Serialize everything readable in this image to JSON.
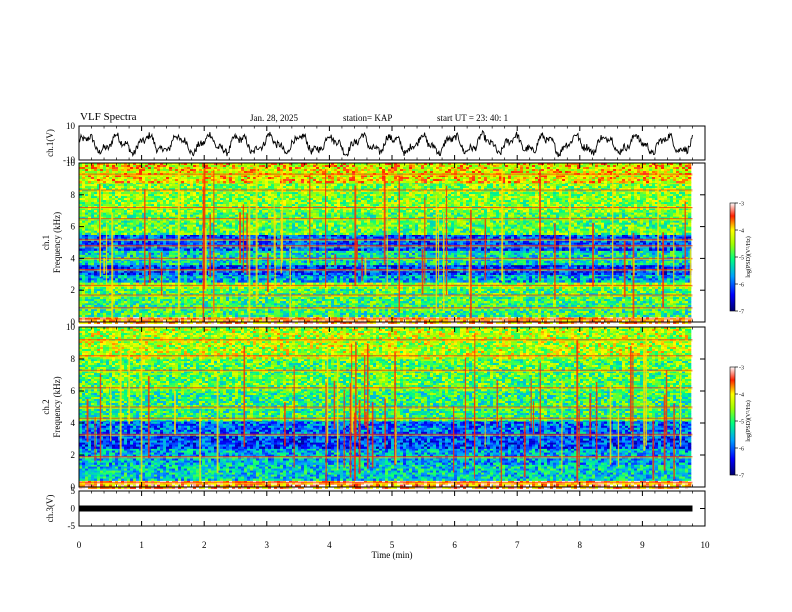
{
  "header": {
    "title": "VLF Spectra",
    "date": "Jan. 28, 2025",
    "station": "station= KAP",
    "start": "start  UT =   23: 40: 1"
  },
  "chart_data": [
    {
      "type": "line",
      "panel": "ch1-waveform",
      "ylabel": "ch.1(V)",
      "ylim": [
        -10,
        10
      ],
      "yticks": [
        "10",
        "-10"
      ],
      "xlim": [
        0,
        10
      ],
      "description_values": "oscillating waveform approx between -8 and 7 V over 0-9.8 min"
    },
    {
      "type": "heatmap",
      "panel": "ch1-spectrogram",
      "ylabel": "ch.1 Frequency (kHz)",
      "ylim": [
        0,
        10
      ],
      "yticks": [
        "0",
        "2",
        "4",
        "6",
        "8",
        "10"
      ],
      "xlim": [
        0,
        10
      ],
      "data_xmax": 9.8,
      "colorbar": {
        "label": "log(PSD)(V²/Hz)",
        "range": [
          -7,
          -3
        ],
        "ticks": [
          "-3",
          "-4",
          "-5",
          "-6",
          "-7"
        ]
      },
      "bands_khz": [
        {
          "from": 0.0,
          "to": 0.4,
          "level": -3.5
        },
        {
          "from": 0.4,
          "to": 1.2,
          "level": -5.0
        },
        {
          "from": 1.2,
          "to": 2.2,
          "level": -4.9
        },
        {
          "from": 2.2,
          "to": 2.6,
          "level": -4.5
        },
        {
          "from": 2.6,
          "to": 3.0,
          "level": -5.6
        },
        {
          "from": 3.0,
          "to": 3.6,
          "level": -6.1
        },
        {
          "from": 3.6,
          "to": 4.6,
          "level": -5.3
        },
        {
          "from": 4.6,
          "to": 5.5,
          "level": -6.0
        },
        {
          "from": 5.5,
          "to": 7.0,
          "level": -4.8
        },
        {
          "from": 7.0,
          "to": 8.8,
          "level": -4.6
        },
        {
          "from": 8.8,
          "to": 10.0,
          "level": -4.1
        }
      ],
      "lines_khz": [
        0.2,
        0.9,
        1.7,
        2.3,
        3.3,
        4.0,
        4.8,
        5.2,
        6.5,
        7.2,
        8.3,
        9.3
      ]
    },
    {
      "type": "heatmap",
      "panel": "ch2-spectrogram",
      "ylabel": "ch.2 Frequency (kHz)",
      "ylim": [
        0,
        10
      ],
      "yticks": [
        "0",
        "2",
        "4",
        "6",
        "8",
        "10"
      ],
      "xlim": [
        0,
        10
      ],
      "data_xmax": 9.8,
      "colorbar": {
        "label": "log(PSD)(V²/Hz)",
        "range": [
          -7,
          -3
        ],
        "ticks": [
          "-3",
          "-4",
          "-5",
          "-6",
          "-7"
        ]
      },
      "bands_khz": [
        {
          "from": 0.0,
          "to": 0.4,
          "level": -3.5
        },
        {
          "from": 0.4,
          "to": 1.4,
          "level": -5.4
        },
        {
          "from": 1.4,
          "to": 2.4,
          "level": -5.6
        },
        {
          "from": 2.4,
          "to": 3.4,
          "level": -6.1
        },
        {
          "from": 3.4,
          "to": 4.2,
          "level": -5.9
        },
        {
          "from": 4.2,
          "to": 6.0,
          "level": -5.0
        },
        {
          "from": 6.0,
          "to": 8.0,
          "level": -4.8
        },
        {
          "from": 8.0,
          "to": 10.0,
          "level": -4.4
        }
      ],
      "lines_khz": [
        0.3,
        1.9,
        3.3,
        4.3,
        5.0,
        6.2,
        7.3,
        8.2,
        9.2
      ]
    },
    {
      "type": "line",
      "panel": "ch3-waveform",
      "ylabel": "ch.3(V)",
      "xlabel": "Time (min)",
      "ylim": [
        -5,
        5
      ],
      "yticks": [
        "5",
        "0",
        "-5"
      ],
      "xlim": [
        0,
        10
      ],
      "xticks": [
        "0",
        "1",
        "2",
        "3",
        "4",
        "5",
        "6",
        "7",
        "8",
        "9",
        "10"
      ],
      "value": 0
    }
  ]
}
